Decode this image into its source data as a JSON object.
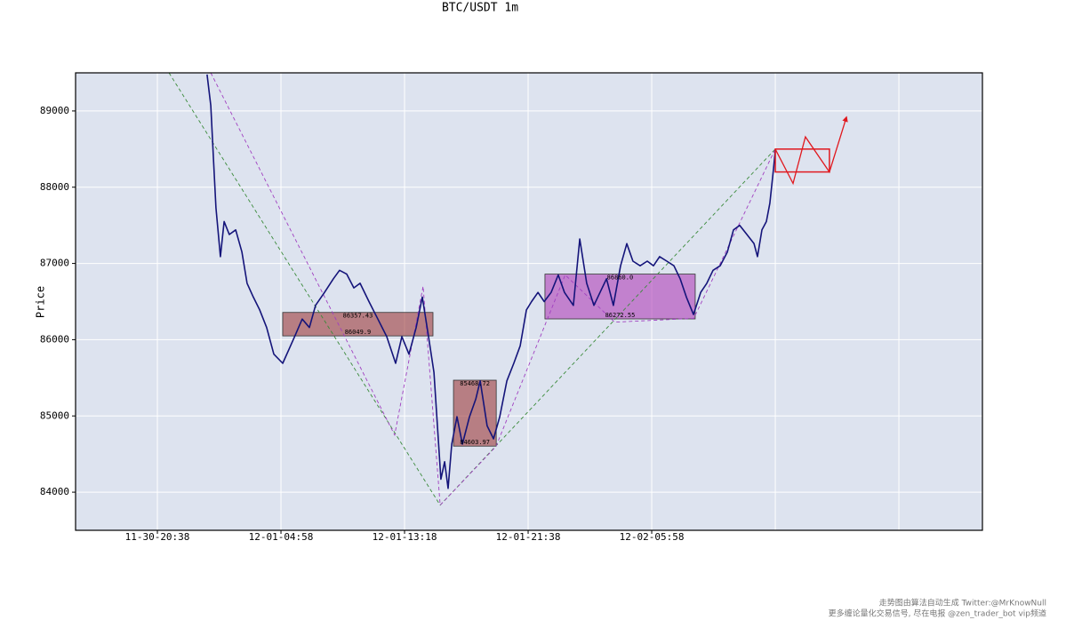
{
  "chart_data": {
    "type": "line",
    "title": "BTC/USDT 1m",
    "y_label": "Price",
    "xlim": [
      -331,
      3338
    ],
    "ylim": [
      83500,
      89500
    ],
    "yticks": [
      84000,
      85000,
      86000,
      87000,
      88000,
      89000
    ],
    "xticks": [
      {
        "value": 0,
        "label": "11-30-20:38"
      },
      {
        "value": 500,
        "label": "12-01-04:58"
      },
      {
        "value": 1000,
        "label": "12-01-13:18"
      },
      {
        "value": 1500,
        "label": "12-01-21:38"
      },
      {
        "value": 2000,
        "label": "12-02-05:58"
      },
      {
        "value": 2500,
        "label": null
      },
      {
        "value": 3000,
        "label": null
      }
    ],
    "grid": true,
    "color": "#14147a",
    "x": [
      201,
      216,
      227,
      237,
      255,
      270,
      291,
      317,
      342,
      363,
      388,
      414,
      442,
      471,
      507,
      532,
      558,
      586,
      615,
      640,
      676,
      712,
      737,
      766,
      795,
      820,
      856,
      892,
      928,
      964,
      989,
      1018,
      1047,
      1072,
      1097,
      1119,
      1133,
      1147,
      1162,
      1176,
      1191,
      1212,
      1234,
      1263,
      1288,
      1306,
      1334,
      1360,
      1385,
      1414,
      1442,
      1468,
      1493,
      1514,
      1540,
      1565,
      1593,
      1622,
      1647,
      1683,
      1709,
      1737,
      1766,
      1791,
      1817,
      1845,
      1874,
      1899,
      1924,
      1953,
      1982,
      2007,
      2032,
      2061,
      2090,
      2115,
      2140,
      2169,
      2198,
      2223,
      2248,
      2277,
      2306,
      2331,
      2356,
      2385,
      2414,
      2428,
      2446,
      2464,
      2478,
      2493,
      2500
    ],
    "values": [
      89478,
      89070,
      88370,
      87730,
      87090,
      87550,
      87380,
      87440,
      87150,
      86740,
      86560,
      86390,
      86160,
      85810,
      85690,
      85870,
      86060,
      86270,
      86160,
      86450,
      86620,
      86800,
      86910,
      86860,
      86680,
      86740,
      86500,
      86270,
      86040,
      85690,
      86040,
      85810,
      86160,
      86560,
      86040,
      85570,
      84870,
      84170,
      84400,
      84050,
      84630,
      84990,
      84630,
      84990,
      85220,
      85460,
      84870,
      84700,
      84990,
      85460,
      85690,
      85920,
      86390,
      86500,
      86620,
      86500,
      86620,
      86850,
      86620,
      86450,
      87320,
      86740,
      86450,
      86620,
      86800,
      86450,
      86970,
      87260,
      87030,
      86970,
      87030,
      86970,
      87090,
      87030,
      86970,
      86800,
      86560,
      86330,
      86620,
      86740,
      86910,
      86970,
      87150,
      87440,
      87500,
      87380,
      87260,
      87090,
      87440,
      87550,
      87790,
      88250,
      88480
    ],
    "zones": [
      {
        "x": [
          507,
          1115
        ],
        "values": [
          86357.43,
          86049.9
        ],
        "color": "#9e3a3a"
      },
      {
        "x": [
          1198,
          1371
        ],
        "values": [
          85468.72,
          84603.97
        ],
        "color": "#9e3a3a"
      },
      {
        "x": [
          1568,
          2176
        ],
        "values": [
          86860,
          86272.55
        ],
        "value_labels": [
          "86860.0",
          "86272.55"
        ],
        "color": "#b040b8"
      }
    ],
    "guides": [
      {
        "color": "#3a8a3a",
        "x": [
          47,
          1144,
          2500
        ],
        "values": [
          89500,
          83830,
          88500
        ]
      },
      {
        "color": "#a040c0",
        "x": [
          216,
          960,
          1075,
          1144,
          1370,
          1650,
          1850,
          2170,
          2500
        ],
        "values": [
          89500,
          84750,
          86700,
          83830,
          84600,
          86850,
          86230,
          86280,
          88500
        ]
      }
    ],
    "projection": {
      "color": "#e0181e",
      "box": {
        "x": [
          2500,
          2719
        ],
        "values": [
          88500,
          88200
        ]
      },
      "x": [
        2500,
        2572,
        2622,
        2719,
        2788
      ],
      "values": [
        88500,
        88050,
        88660,
        88200,
        88920
      ]
    },
    "footer": [
      "走势图由算法自动生成  Twitter:@MrKnowNull",
      "更多缠论量化交易信号, 尽在电报 @zen_trader_bot vip频道"
    ]
  }
}
